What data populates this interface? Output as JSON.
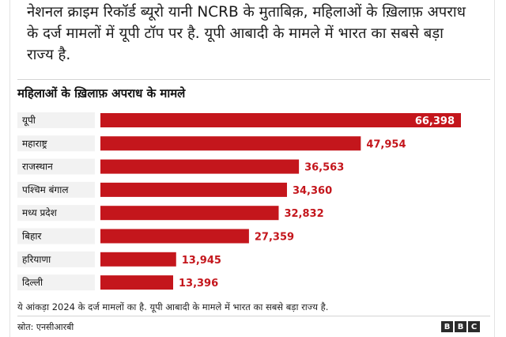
{
  "article": {
    "text": "नेशनल क्राइम रिकॉर्ड ब्यूरो यानी NCRB के मुताबिक़, महिलाओं के ख़िलाफ़ अपराध के दर्ज मामलों में यूपी टॉप पर है. यूपी आबादी के मामले में भारत का सबसे बड़ा राज्य है."
  },
  "chart_data": {
    "type": "bar",
    "orientation": "horizontal",
    "title": "महिलाओं के ख़िलाफ़ अपराध के मामले",
    "categories": [
      "यूपी",
      "महाराष्ट्र",
      "राजस्थान",
      "पश्चिम बंगाल",
      "मध्य प्रदेश",
      "बिहार",
      "हरियाणा",
      "दिल्ली"
    ],
    "values": [
      66398,
      47954,
      36563,
      34360,
      32832,
      27359,
      13945,
      13396
    ],
    "value_labels": [
      "66,398",
      "47,954",
      "36,563",
      "34,360",
      "32,832",
      "27,359",
      "13,945",
      "13,396"
    ],
    "xlim": [
      0,
      66398
    ],
    "bar_color": "#c4161c",
    "label_background": "#f2f2f2",
    "grid": false
  },
  "footer": {
    "note": "ये आंकड़ा 2024 के दर्ज मामलों का है. यूपी आबादी के मामले में भारत का सबसे बड़ा राज्य है.",
    "source": "स्रोत: एनसीआरबी",
    "logo_letters": [
      "B",
      "B",
      "C"
    ]
  }
}
